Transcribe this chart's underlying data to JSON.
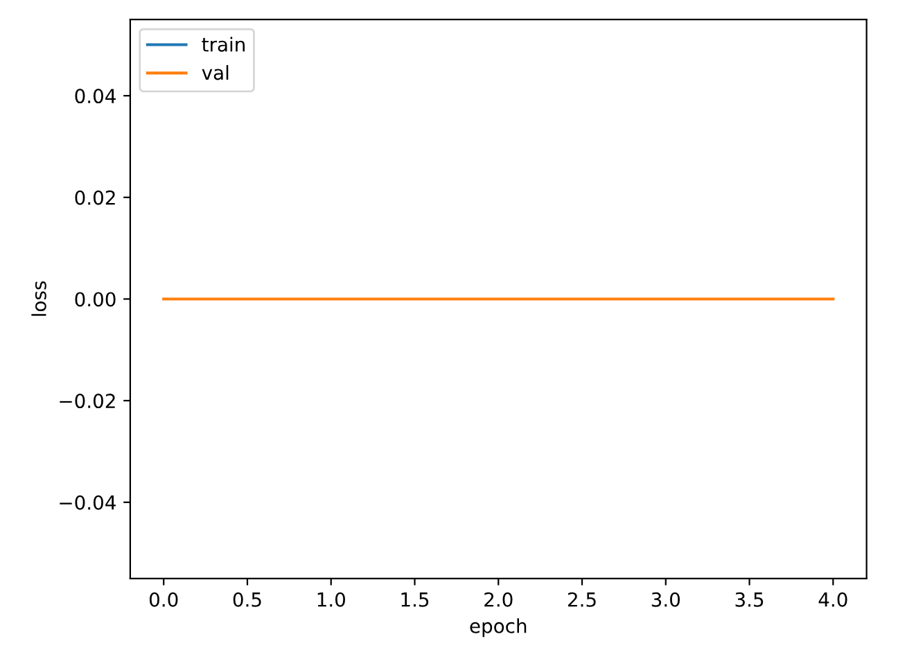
{
  "chart_data": {
    "type": "line",
    "xlabel": "epoch",
    "ylabel": "loss",
    "x": [
      0,
      4
    ],
    "series": [
      {
        "name": "train",
        "color": "#1f77b4",
        "values": [
          null,
          null
        ]
      },
      {
        "name": "val",
        "color": "#ff7f0e",
        "values": [
          0,
          0
        ]
      }
    ],
    "xlim": [
      -0.2,
      4.2
    ],
    "ylim": [
      -0.055,
      0.055
    ],
    "xticks": [
      {
        "value": 0,
        "label": "0.0"
      },
      0.5,
      {
        "value": 1,
        "label": "1.0"
      },
      1.5,
      {
        "value": 2,
        "label": "2.0"
      },
      2.5,
      {
        "value": 3,
        "label": "3.0"
      },
      3.5,
      {
        "value": 4,
        "label": "4.0"
      }
    ],
    "yticks": [
      {
        "value": -0.04,
        "label": "−0.04"
      },
      {
        "value": -0.02,
        "label": "−0.02"
      },
      {
        "value": 0,
        "label": "0.00"
      },
      0.02,
      0.04
    ],
    "legend": "top left",
    "grid": false,
    "marker": "none",
    "line_style": "solid"
  }
}
